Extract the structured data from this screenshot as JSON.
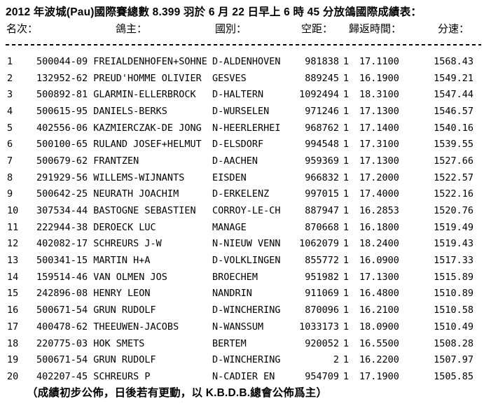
{
  "page": {
    "title": "2012 年波城(Pau)國際賽總數 8.399 羽於 6 月 22 日早上 6 時 45 分放鴿國際成績表：",
    "footer": "（成績初步公佈，日後若有更動，以 K.B.D.B.總會公佈爲主）"
  },
  "colors": {
    "text": "#000000",
    "background": "#ffffff"
  },
  "table": {
    "headers": {
      "rank": "名次：",
      "owner": "鴿主：",
      "country": "國別：",
      "distance": "空距：",
      "return_time": "歸返時間：",
      "speed": "分速："
    },
    "rows": [
      {
        "rank": "1",
        "owner": "500044-09 FREIALDENHOFEN+SOHNE",
        "country": "D-ALDENHOVEN",
        "distance": "981838",
        "count": "1",
        "time": "17.1100",
        "speed": "1568.43"
      },
      {
        "rank": "2",
        "owner": "132952-62 PREUD'HOMME OLIVIER",
        "country": "GESVES",
        "distance": "889245",
        "count": "1",
        "time": "16.1900",
        "speed": "1549.21"
      },
      {
        "rank": "3",
        "owner": "500892-81 GLARMIN-ELLERBROCK",
        "country": "D-HALTERN",
        "distance": "1092494",
        "count": "1",
        "time": "18.3100",
        "speed": "1547.44"
      },
      {
        "rank": "4",
        "owner": "500615-95 DANIELS-BERKS",
        "country": "D-WURSELEN",
        "distance": "971246",
        "count": "1",
        "time": "17.1300",
        "speed": "1546.57"
      },
      {
        "rank": "5",
        "owner": "402556-06 KAZMIERCZAK-DE JONG",
        "country": "N-HEERLERHEI",
        "distance": "968762",
        "count": "1",
        "time": "17.1400",
        "speed": "1540.16"
      },
      {
        "rank": "6",
        "owner": "500100-65 RULAND JOSEF+HELMUT",
        "country": "D-ELSDORF",
        "distance": "994548",
        "count": "1",
        "time": "17.3100",
        "speed": "1539.55"
      },
      {
        "rank": "7",
        "owner": "500679-62 FRANTZEN",
        "country": "D-AACHEN",
        "distance": "959369",
        "count": "1",
        "time": "17.1300",
        "speed": "1527.66"
      },
      {
        "rank": "8",
        "owner": "291929-56 WILLEMS-WIJNANTS",
        "country": "EISDEN",
        "distance": "966832",
        "count": "1",
        "time": "17.2000",
        "speed": "1522.57"
      },
      {
        "rank": "9",
        "owner": "500642-25 NEURATH JOACHIM",
        "country": "D-ERKELENZ",
        "distance": "997015",
        "count": "1",
        "time": "17.4000",
        "speed": "1522.16"
      },
      {
        "rank": "10",
        "owner": "307534-44 BASTOGNE SEBASTIEN",
        "country": "CORROY-LE-CH",
        "distance": "887947",
        "count": "1",
        "time": "16.2853",
        "speed": "1520.76"
      },
      {
        "rank": "11",
        "owner": "222944-38 DEROECK LUC",
        "country": "MANAGE",
        "distance": "870668",
        "count": "1",
        "time": "16.1800",
        "speed": "1519.49"
      },
      {
        "rank": "12",
        "owner": "402082-17 SCHREURS J-W",
        "country": "N-NIEUW VENN",
        "distance": "1062079",
        "count": "1",
        "time": "18.2400",
        "speed": "1519.43"
      },
      {
        "rank": "13",
        "owner": "500341-15 MARTIN H+A",
        "country": "D-VOLKLINGEN",
        "distance": "855772",
        "count": "1",
        "time": "16.0900",
        "speed": "1517.33"
      },
      {
        "rank": "14",
        "owner": "159514-46 VAN OLMEN JOS",
        "country": "BROECHEM",
        "distance": "951982",
        "count": "1",
        "time": "17.1300",
        "speed": "1515.89"
      },
      {
        "rank": "15",
        "owner": "242896-08 HENRY LEON",
        "country": "NANDRIN",
        "distance": "911069",
        "count": "1",
        "time": "16.4800",
        "speed": "1510.89"
      },
      {
        "rank": "16",
        "owner": "500671-54 GRUN RUDOLF",
        "country": "D-WINCHERING",
        "distance": "870096",
        "count": "1",
        "time": "16.2100",
        "speed": "1510.58"
      },
      {
        "rank": "17",
        "owner": "400478-62 THEEUWEN-JACOBS",
        "country": "N-WANSSUM",
        "distance": "1033173",
        "count": "1",
        "time": "18.0900",
        "speed": "1510.49"
      },
      {
        "rank": "18",
        "owner": "220775-03 HOK SMETS",
        "country": "BERTEM",
        "distance": "920052",
        "count": "1",
        "time": "16.5500",
        "speed": "1508.28"
      },
      {
        "rank": "19",
        "owner": "500671-54 GRUN RUDOLF",
        "country": "D-WINCHERING",
        "distance": "2",
        "count": "1",
        "time": "16.2200",
        "speed": "1507.97"
      },
      {
        "rank": "20",
        "owner": "402207-45 SCHREURS P",
        "country": "N-CADIER EN",
        "distance": "954709",
        "count": "1",
        "time": "17.1900",
        "speed": "1505.85"
      }
    ]
  }
}
